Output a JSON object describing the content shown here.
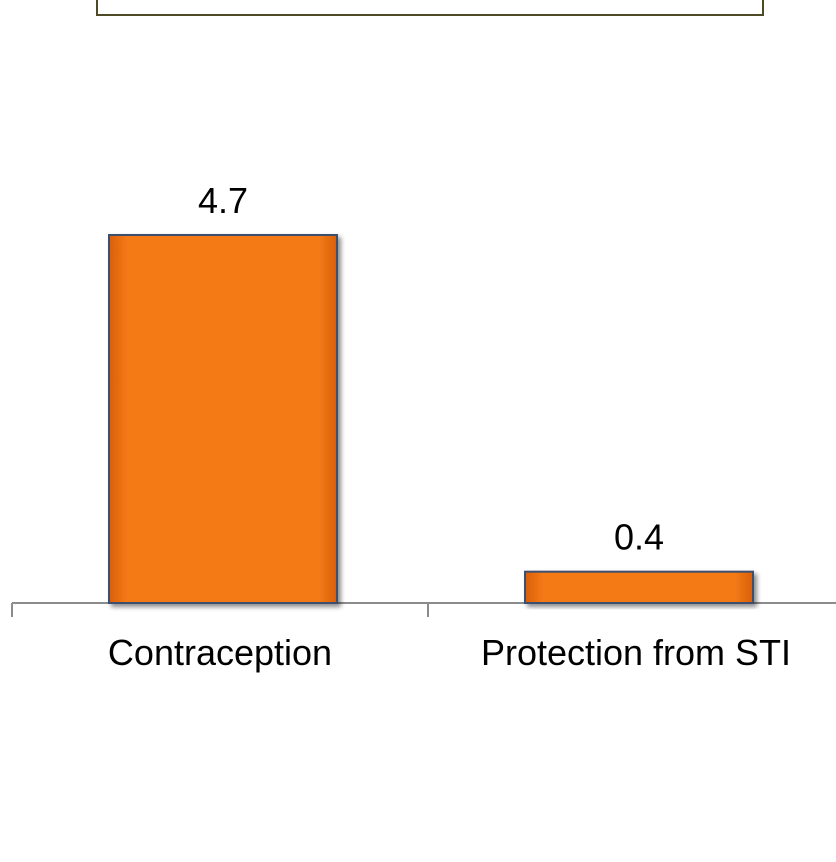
{
  "colors": {
    "bar_fill": "#f07a14",
    "bar_border": "#3e4f6e",
    "axis": "#8c8c8c",
    "header_band": "#4e4a26"
  },
  "chart_data": {
    "type": "bar",
    "title": "",
    "xlabel": "",
    "ylabel": "",
    "categories": [
      "Contraception",
      "Protection from STI"
    ],
    "values": [
      4.7,
      0.4
    ],
    "data_labels": [
      "4.7",
      "0.4"
    ],
    "ylim": [
      0,
      6
    ],
    "grid": false,
    "legend": "none"
  }
}
